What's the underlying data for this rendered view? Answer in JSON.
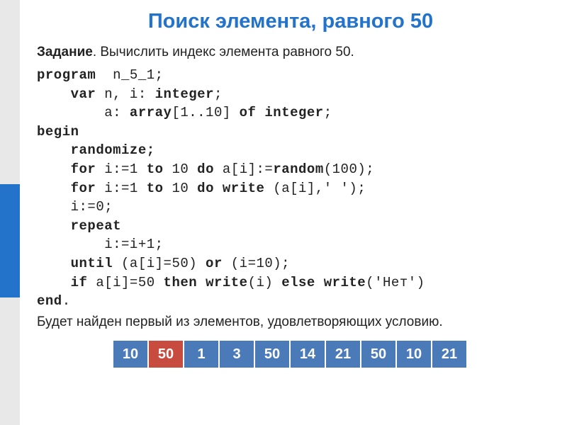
{
  "title": "Поиск элемента, равного 50",
  "task": {
    "label": "Задание",
    "text": ". Вычислить индекс элемента равного 50."
  },
  "code": {
    "l1a": "program",
    "l1b": "  n_5_1;",
    "l2a": "    var",
    "l2b": " n, i: ",
    "l2c": "integer",
    "l2d": ";",
    "l3a": "        a: ",
    "l3b": "array",
    "l3c": "[1..10] ",
    "l3d": "of",
    "l3e": " ",
    "l3f": "integer",
    "l3g": ";",
    "l4": "begin",
    "l5": "    randomize;",
    "l6a": "    for",
    "l6b": " i:=1 ",
    "l6c": "to",
    "l6d": " 10 ",
    "l6e": "do",
    "l6f": " a[i]:=",
    "l6g": "random",
    "l6h": "(100);",
    "l7a": "    for",
    "l7b": " i:=1 ",
    "l7c": "to",
    "l7d": " 10 ",
    "l7e": "do",
    "l7f": " ",
    "l7g": "write",
    "l7h": " (a[i],' ');",
    "l8": "    i:=0;",
    "l9": "    repeat",
    "l10": "        i:=i+1;",
    "l11a": "    until",
    "l11b": " (a[i]=50) ",
    "l11c": "or",
    "l11d": " (i=10);",
    "l12a": "    if",
    "l12b": " a[i]=50 ",
    "l12c": "then",
    "l12d": " ",
    "l12e": "write",
    "l12f": "(i) ",
    "l12g": "else",
    "l12h": " ",
    "l12i": "write",
    "l12j": "('Нет')",
    "l13a": "end",
    "l13b": "."
  },
  "note": "   Будет найден первый из элементов, удовлетворяющих условию.",
  "array": {
    "values": [
      "10",
      "50",
      "1",
      "3",
      "50",
      "14",
      "21",
      "50",
      "10",
      "21"
    ],
    "colors": [
      "#4a7ab8",
      "#c84b3f",
      "#4a7ab8",
      "#4a7ab8",
      "#4a7ab8",
      "#4a7ab8",
      "#4a7ab8",
      "#4a7ab8",
      "#4a7ab8",
      "#4a7ab8"
    ]
  },
  "colors": {
    "title": "#2273c9",
    "sidebar_gray": "#e8e8e8",
    "sidebar_blue": "#2273c9",
    "background": "#ffffff"
  }
}
